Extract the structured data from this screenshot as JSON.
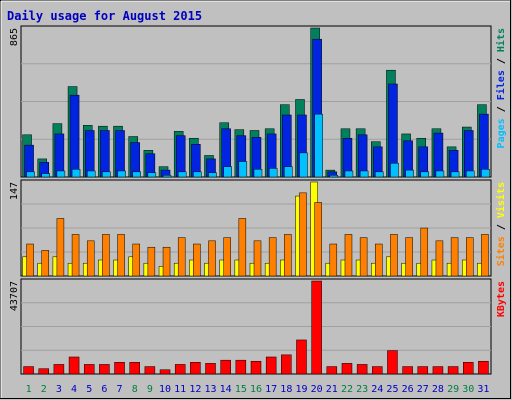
{
  "title": "Daily usage for August 2015",
  "colors": {
    "background": "#c0c0c0",
    "hits": "#00805c",
    "files": "#0024e0",
    "pages": "#00c0ff",
    "visits": "#ffff00",
    "sites": "#ff8000",
    "kbytes": "#ff0000",
    "title": "#0000c0",
    "weekend_day": "#008040",
    "weekday": "#0000c0"
  },
  "chart_data": [
    {
      "type": "bar",
      "panel": "top",
      "y_axis_label": "865",
      "legend": [
        "Pages",
        "Files",
        "Hits"
      ],
      "categories": [
        "1",
        "2",
        "3",
        "4",
        "5",
        "6",
        "7",
        "8",
        "9",
        "10",
        "11",
        "12",
        "13",
        "14",
        "15",
        "16",
        "17",
        "18",
        "19",
        "20",
        "21",
        "22",
        "23",
        "24",
        "25",
        "26",
        "27",
        "28",
        "29",
        "30",
        "31"
      ],
      "ylim": [
        0,
        865
      ],
      "series": [
        {
          "name": "Hits",
          "values": [
            245,
            105,
            310,
            525,
            300,
            295,
            295,
            235,
            155,
            60,
            265,
            225,
            125,
            315,
            275,
            270,
            280,
            420,
            450,
            865,
            40,
            280,
            280,
            205,
            620,
            250,
            225,
            280,
            175,
            290,
            420
          ]
        },
        {
          "name": "Files",
          "values": [
            185,
            85,
            250,
            475,
            270,
            270,
            270,
            200,
            135,
            40,
            240,
            190,
            105,
            280,
            240,
            230,
            250,
            360,
            360,
            800,
            30,
            225,
            245,
            175,
            540,
            210,
            175,
            255,
            155,
            270,
            365
          ]
        },
        {
          "name": "Pages",
          "values": [
            30,
            20,
            35,
            45,
            35,
            30,
            35,
            30,
            25,
            10,
            30,
            30,
            25,
            60,
            90,
            45,
            50,
            60,
            140,
            365,
            10,
            35,
            35,
            30,
            80,
            40,
            30,
            35,
            30,
            35,
            45
          ]
        }
      ]
    },
    {
      "type": "bar",
      "panel": "middle",
      "y_axis_label": "147",
      "legend": [
        "Sites",
        "Visits"
      ],
      "categories": [
        "1",
        "2",
        "3",
        "4",
        "5",
        "6",
        "7",
        "8",
        "9",
        "10",
        "11",
        "12",
        "13",
        "14",
        "15",
        "16",
        "17",
        "18",
        "19",
        "20",
        "21",
        "22",
        "23",
        "24",
        "25",
        "26",
        "27",
        "28",
        "29",
        "30",
        "31"
      ],
      "ylim": [
        0,
        147
      ],
      "series": [
        {
          "name": "Visits",
          "values": [
            30,
            20,
            30,
            20,
            20,
            25,
            25,
            30,
            20,
            15,
            20,
            25,
            20,
            25,
            25,
            20,
            20,
            25,
            125,
            147,
            20,
            25,
            25,
            20,
            30,
            20,
            20,
            25,
            20,
            25,
            20
          ]
        },
        {
          "name": "Sites",
          "values": [
            50,
            40,
            90,
            65,
            55,
            65,
            65,
            50,
            45,
            45,
            60,
            50,
            55,
            60,
            90,
            55,
            60,
            65,
            130,
            115,
            50,
            65,
            60,
            50,
            65,
            60,
            75,
            55,
            60,
            60,
            65
          ]
        }
      ]
    },
    {
      "type": "bar",
      "panel": "bottom",
      "y_axis_label": "43707",
      "legend": [
        "KBytes"
      ],
      "categories": [
        "1",
        "2",
        "3",
        "4",
        "5",
        "6",
        "7",
        "8",
        "9",
        "10",
        "11",
        "12",
        "13",
        "14",
        "15",
        "16",
        "17",
        "18",
        "19",
        "20",
        "21",
        "22",
        "23",
        "24",
        "25",
        "26",
        "27",
        "28",
        "29",
        "30",
        "31"
      ],
      "ylim": [
        0,
        43707
      ],
      "series": [
        {
          "name": "KBytes",
          "values": [
            3500,
            2500,
            4500,
            8000,
            4500,
            4500,
            5500,
            5500,
            3500,
            2000,
            4500,
            5500,
            5000,
            6500,
            6500,
            6000,
            8000,
            9000,
            16000,
            43707,
            3500,
            5000,
            4500,
            3500,
            11000,
            3500,
            3500,
            3500,
            3500,
            5500,
            6000
          ]
        }
      ]
    }
  ]
}
